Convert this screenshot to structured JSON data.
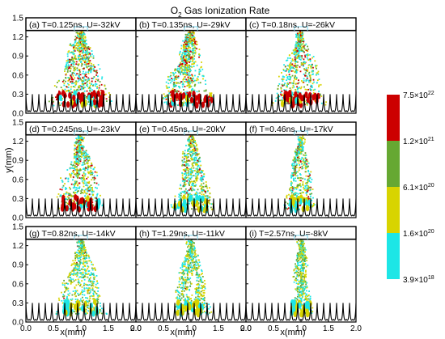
{
  "figure": {
    "title_base": "O",
    "title_sub": "2",
    "title_rest": " Gas Ionization Rate"
  },
  "chart_data": {
    "type": "heatmap",
    "xlabel": "x(mm)",
    "ylabel": "y(mm)",
    "xlim": [
      0.0,
      2.0
    ],
    "ylim": [
      0.0,
      1.5
    ],
    "x_ticks": [
      "0.0",
      "0.5",
      "1.0",
      "1.5",
      "2.0"
    ],
    "y_ticks": [
      "0.0",
      "0.3",
      "0.6",
      "0.9",
      "1.2",
      "1.5"
    ],
    "panels": [
      {
        "label": "(a) T=0.125ns, U=-32kV",
        "spread": 0.95,
        "density": 1.0,
        "red": 0.55,
        "root_red": true
      },
      {
        "label": "(b) T=0.135ns, U=-29kV",
        "spread": 0.85,
        "density": 0.95,
        "red": 0.45,
        "root_red": true
      },
      {
        "label": "(c) T=0.18ns, U=-26kV",
        "spread": 0.8,
        "density": 0.8,
        "red": 0.35,
        "root_red": true
      },
      {
        "label": "(d) T=0.245ns, U=-23kV",
        "spread": 0.75,
        "density": 0.75,
        "red": 0.3,
        "root_red": true
      },
      {
        "label": "(e) T=0.45ns, U=-20kV",
        "spread": 0.65,
        "density": 0.65,
        "red": 0.2,
        "root_red": false
      },
      {
        "label": "(f) T=0.46ns, U=-17kV",
        "spread": 0.45,
        "density": 0.5,
        "red": 0.25,
        "root_red": false
      },
      {
        "label": "(g) T=0.82ns, U=-14kV",
        "spread": 0.7,
        "density": 0.7,
        "red": 0.03,
        "root_red": false
      },
      {
        "label": "(h) T=1.29ns, U=-11kV",
        "spread": 0.55,
        "density": 0.65,
        "red": 0.03,
        "root_red": false
      },
      {
        "label": "(i) T=2.57ns, U=-8kV",
        "spread": 0.4,
        "density": 0.55,
        "red": 0.0,
        "root_red": false
      }
    ],
    "colorbar": {
      "colors": [
        "#cc0000",
        "#66a832",
        "#d8d400",
        "#1de6e6"
      ],
      "labels": [
        {
          "base": "7.5×10",
          "exp": "22"
        },
        {
          "base": "1.2×10",
          "exp": "21"
        },
        {
          "base": "6.1×10",
          "exp": "20"
        },
        {
          "base": "1.6×10",
          "exp": "20"
        },
        {
          "base": "3.9×10",
          "exp": "18"
        }
      ]
    },
    "grid": false
  }
}
